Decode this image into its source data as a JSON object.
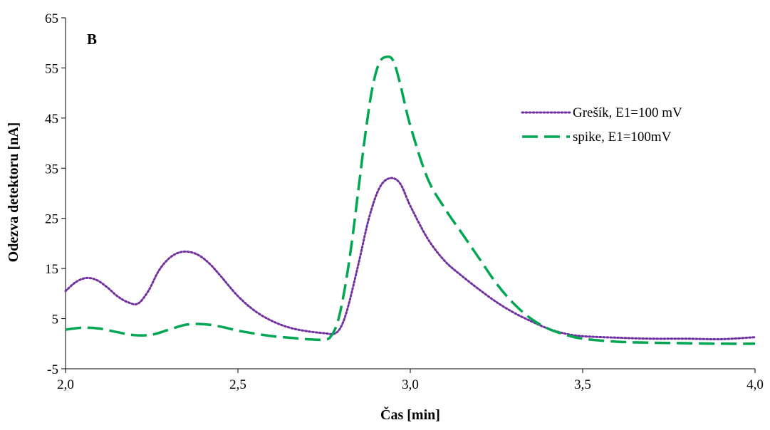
{
  "chart_data": {
    "type": "line",
    "panel_label": "B",
    "xlabel": "Čas [min]",
    "ylabel": "Odezva detektoru [nA]",
    "xlim": [
      2.0,
      4.0
    ],
    "ylim": [
      -5,
      65
    ],
    "xticks": [
      2.0,
      2.5,
      3.0,
      3.5,
      4.0
    ],
    "xtick_labels": [
      "2,0",
      "2,5",
      "3,0",
      "3,5",
      "4,0"
    ],
    "yticks": [
      -5,
      5,
      15,
      25,
      35,
      45,
      55,
      65
    ],
    "ytick_labels": [
      "-5",
      "5",
      "15",
      "25",
      "35",
      "45",
      "55",
      "65"
    ],
    "grid": false,
    "legend_position": "right",
    "series": [
      {
        "name": "Grešík, E1=100 mV",
        "color": "#7030A0",
        "style": "dotted",
        "x": [
          2.0,
          2.03,
          2.06,
          2.09,
          2.12,
          2.15,
          2.18,
          2.21,
          2.24,
          2.27,
          2.3,
          2.33,
          2.36,
          2.39,
          2.42,
          2.45,
          2.5,
          2.55,
          2.6,
          2.65,
          2.7,
          2.75,
          2.78,
          2.8,
          2.82,
          2.85,
          2.88,
          2.91,
          2.94,
          2.97,
          3.0,
          3.05,
          3.1,
          3.15,
          3.2,
          3.25,
          3.3,
          3.35,
          3.4,
          3.45,
          3.5,
          3.6,
          3.7,
          3.8,
          3.9,
          4.0
        ],
        "y": [
          10.5,
          12.3,
          13.1,
          12.7,
          11.3,
          9.5,
          8.3,
          8.0,
          10.5,
          14.5,
          17.0,
          18.2,
          18.3,
          17.5,
          15.8,
          13.5,
          9.5,
          6.5,
          4.5,
          3.2,
          2.5,
          2.1,
          2.0,
          3.5,
          7.5,
          16.0,
          25.0,
          31.0,
          33.0,
          32.0,
          27.5,
          21.0,
          16.5,
          13.5,
          10.8,
          8.3,
          6.2,
          4.5,
          3.0,
          2.0,
          1.5,
          1.2,
          1.0,
          1.0,
          0.9,
          1.3
        ]
      },
      {
        "name": "spike, E1=100mV",
        "color": "#00A651",
        "style": "dashed",
        "x": [
          2.0,
          2.05,
          2.1,
          2.15,
          2.2,
          2.25,
          2.3,
          2.35,
          2.4,
          2.45,
          2.5,
          2.55,
          2.6,
          2.65,
          2.7,
          2.75,
          2.77,
          2.79,
          2.81,
          2.83,
          2.85,
          2.87,
          2.89,
          2.91,
          2.93,
          2.95,
          2.97,
          3.0,
          3.05,
          3.1,
          3.15,
          3.2,
          3.25,
          3.3,
          3.35,
          3.4,
          3.45,
          3.5,
          3.6,
          3.7,
          3.8,
          3.9,
          4.0
        ],
        "y": [
          2.8,
          3.2,
          3.0,
          2.3,
          1.7,
          1.8,
          2.8,
          3.8,
          3.9,
          3.4,
          2.6,
          2.0,
          1.5,
          1.2,
          0.9,
          0.8,
          1.5,
          4.5,
          11.0,
          20.0,
          31.0,
          42.0,
          51.0,
          56.0,
          57.2,
          56.5,
          52.0,
          43.5,
          33.0,
          27.0,
          22.0,
          17.0,
          12.0,
          8.0,
          5.0,
          3.0,
          1.8,
          1.0,
          0.4,
          0.2,
          0.1,
          0.0,
          0.0
        ]
      }
    ]
  }
}
